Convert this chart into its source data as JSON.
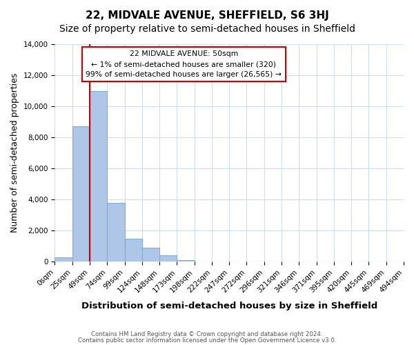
{
  "title": "22, MIDVALE AVENUE, SHEFFIELD, S6 3HJ",
  "subtitle": "Size of property relative to semi-detached houses in Sheffield",
  "xlabel": "Distribution of semi-detached houses by size in Sheffield",
  "ylabel": "Number of semi-detached properties",
  "footer_line1": "Contains HM Land Registry data © Crown copyright and database right 2024.",
  "footer_line2": "Contains public sector information licensed under the Open Government Licence v3.0.",
  "bin_edges": [
    0,
    25,
    49,
    74,
    99,
    124,
    148,
    173,
    198,
    222,
    247,
    272,
    296,
    321,
    346,
    371,
    395,
    420,
    445,
    469,
    494
  ],
  "bin_labels": [
    "0sqm",
    "25sqm",
    "49sqm",
    "74sqm",
    "99sqm",
    "124sqm",
    "148sqm",
    "173sqm",
    "198sqm",
    "222sqm",
    "247sqm",
    "272sqm",
    "296sqm",
    "321sqm",
    "346sqm",
    "371sqm",
    "395sqm",
    "420sqm",
    "445sqm",
    "469sqm",
    "494sqm"
  ],
  "bar_values": [
    300,
    8700,
    11000,
    3800,
    1500,
    900,
    400,
    100,
    0,
    0,
    0,
    0,
    0,
    0,
    0,
    0,
    0,
    0,
    0,
    0
  ],
  "bar_color": "#aec6e8",
  "bar_edge_color": "#7fafd4",
  "property_line_bin_index": 2,
  "property_sqm": 50,
  "annotation_title": "22 MIDVALE AVENUE: 50sqm",
  "annotation_line1": "← 1% of semi-detached houses are smaller (320)",
  "annotation_line2": "99% of semi-detached houses are larger (26,565) →",
  "annotation_box_color": "#ffffff",
  "annotation_border_color": "#cc0000",
  "property_line_color": "#cc0000",
  "ylim": [
    0,
    14000
  ],
  "yticks": [
    0,
    2000,
    4000,
    6000,
    8000,
    10000,
    12000,
    14000
  ],
  "bg_color": "#ffffff",
  "grid_color": "#d0dce8",
  "title_fontsize": 11,
  "subtitle_fontsize": 10,
  "axis_label_fontsize": 9,
  "tick_fontsize": 7.5
}
